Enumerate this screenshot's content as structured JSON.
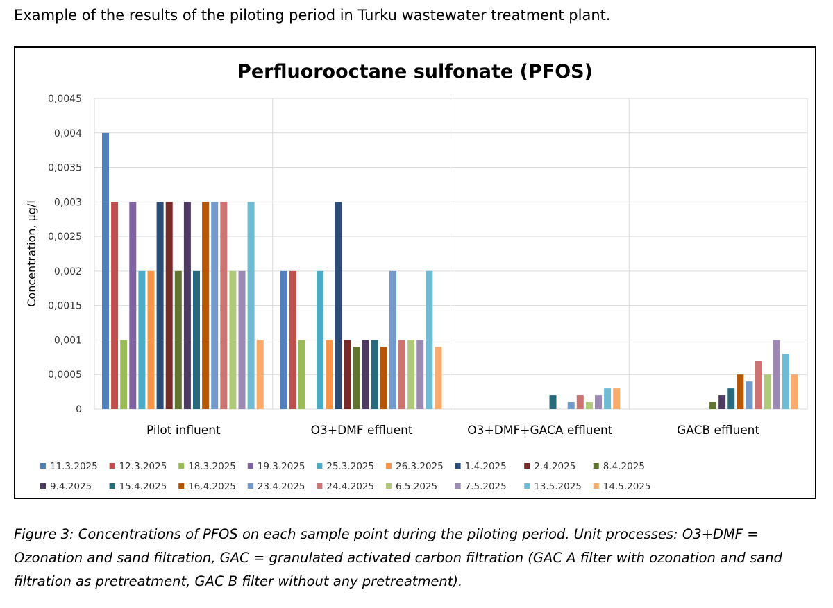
{
  "intro": "Example of the results of the piloting period in Turku wastewater treatment plant.",
  "caption": "Figure 3: Concentrations of PFOS on each sample point during the piloting period. Unit processes: O3+DMF = Ozonation and sand filtration, GAC = granulated activated carbon filtration (GAC A filter with ozonation and sand filtration as pretreatment, GAC B filter without any pretreatment).",
  "chart_data": {
    "type": "bar",
    "title": "Perfluorooctane sulfonate (PFOS)",
    "xlabel": "",
    "ylabel": "Concentration, µg/l",
    "ylim": [
      0,
      0.0045
    ],
    "yticks": [
      "0",
      "0,0005",
      "0,001",
      "0,0015",
      "0,002",
      "0,0025",
      "0,003",
      "0,0035",
      "0,004",
      "0,0045"
    ],
    "grid": true,
    "legend_position": "bottom",
    "categories": [
      "Pilot influent",
      "O3+DMF effluent",
      "O3+DMF+GACA effluent",
      "GACB effluent"
    ],
    "series": [
      {
        "name": "11.3.2025",
        "color": "#4F81BD",
        "values": [
          0.004,
          0.002,
          null,
          null
        ]
      },
      {
        "name": "12.3.2025",
        "color": "#C0504D",
        "values": [
          0.003,
          0.002,
          null,
          null
        ]
      },
      {
        "name": "18.3.2025",
        "color": "#9BBB59",
        "values": [
          0.001,
          0.001,
          null,
          null
        ]
      },
      {
        "name": "19.3.2025",
        "color": "#8064A2",
        "values": [
          0.003,
          null,
          null,
          null
        ]
      },
      {
        "name": "25.3.2025",
        "color": "#4BACC6",
        "values": [
          0.002,
          0.002,
          null,
          null
        ]
      },
      {
        "name": "26.3.2025",
        "color": "#F79646",
        "values": [
          0.002,
          0.001,
          null,
          null
        ]
      },
      {
        "name": "1.4.2025",
        "color": "#2C4D75",
        "values": [
          0.003,
          0.003,
          null,
          null
        ]
      },
      {
        "name": "2.4.2025",
        "color": "#772C2A",
        "values": [
          0.003,
          0.001,
          null,
          null
        ]
      },
      {
        "name": "8.4.2025",
        "color": "#5F7530",
        "values": [
          0.002,
          0.0009,
          null,
          0.0001
        ]
      },
      {
        "name": "9.4.2025",
        "color": "#4D3B62",
        "values": [
          0.003,
          0.001,
          null,
          0.0002
        ]
      },
      {
        "name": "15.4.2025",
        "color": "#276A7C",
        "values": [
          0.002,
          0.001,
          0.0002,
          0.0003
        ]
      },
      {
        "name": "16.4.2025",
        "color": "#B65708",
        "values": [
          0.003,
          0.0009,
          null,
          0.0005
        ]
      },
      {
        "name": "23.4.2025",
        "color": "#729ACA",
        "values": [
          0.003,
          0.002,
          0.0001,
          0.0004
        ]
      },
      {
        "name": "24.4.2025",
        "color": "#CD7371",
        "values": [
          0.003,
          0.001,
          0.0002,
          0.0007
        ]
      },
      {
        "name": "6.5.2025",
        "color": "#AFC97A",
        "values": [
          0.002,
          0.001,
          0.0001,
          0.0005
        ]
      },
      {
        "name": "7.5.2025",
        "color": "#9C8AB3",
        "values": [
          0.002,
          0.001,
          0.0002,
          0.001
        ]
      },
      {
        "name": "13.5.2025",
        "color": "#6FBBD3",
        "values": [
          0.003,
          0.002,
          0.0003,
          0.0008
        ]
      },
      {
        "name": "14.5.2025",
        "color": "#F9AB6B",
        "values": [
          0.001,
          0.0009,
          0.0003,
          0.0005
        ]
      }
    ]
  }
}
